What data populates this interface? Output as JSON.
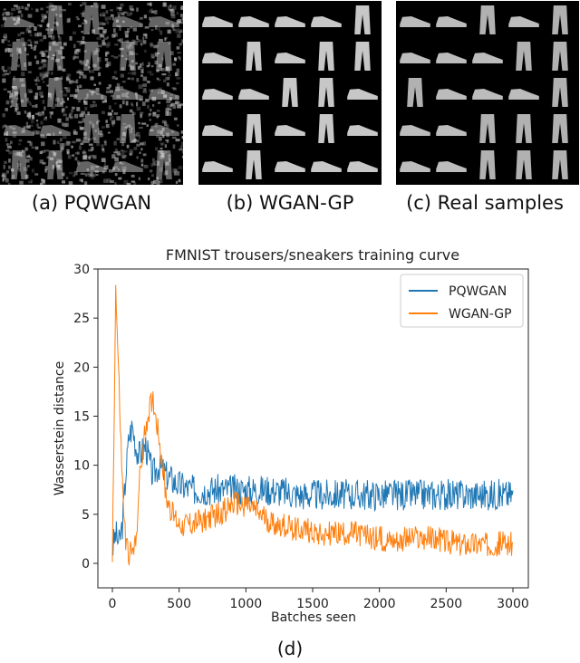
{
  "panels": [
    {
      "caption": "(a) PQWGAN"
    },
    {
      "caption": "(b) WGAN-GP"
    },
    {
      "caption": "(c) Real samples"
    }
  ],
  "figure_caption": "(d)",
  "chart_data": {
    "type": "line",
    "title": "FMNIST trousers/sneakers training curve",
    "xlabel": "Batches seen",
    "ylabel": "Wasserstein distance",
    "xlim": [
      0,
      3000
    ],
    "ylim": [
      0,
      30
    ],
    "xticks": [
      0,
      500,
      1000,
      1500,
      2000,
      2500,
      3000
    ],
    "yticks": [
      0,
      5,
      10,
      15,
      20,
      25,
      30
    ],
    "grid": false,
    "legend_position": "top-right",
    "colors": {
      "PQWGAN": "#1f77b4",
      "WGAN-GP": "#ff7f0e"
    },
    "x": [
      0,
      25,
      50,
      75,
      100,
      125,
      150,
      175,
      200,
      250,
      300,
      350,
      400,
      450,
      500,
      600,
      700,
      800,
      900,
      1000,
      1100,
      1200,
      1400,
      1600,
      1800,
      2000,
      2200,
      2400,
      2600,
      2800,
      3000
    ],
    "series": [
      {
        "name": "PQWGAN",
        "values": [
          1.5,
          3,
          2,
          4,
          9,
          13,
          14,
          12,
          11,
          12,
          9,
          10,
          9,
          8.5,
          8,
          7.5,
          7.5,
          7.5,
          7.5,
          7.5,
          7.5,
          7.5,
          7,
          7,
          7,
          7,
          7,
          7,
          7,
          7,
          7
        ]
      },
      {
        "name": "WGAN-GP",
        "values": [
          0.5,
          28,
          18,
          8,
          2,
          1,
          1,
          2,
          8,
          14,
          17,
          13,
          7,
          5,
          4,
          4,
          4.5,
          5,
          6,
          6,
          5,
          4,
          3.5,
          3,
          3,
          2.5,
          2.5,
          2.5,
          2,
          2,
          2
        ]
      }
    ]
  }
}
